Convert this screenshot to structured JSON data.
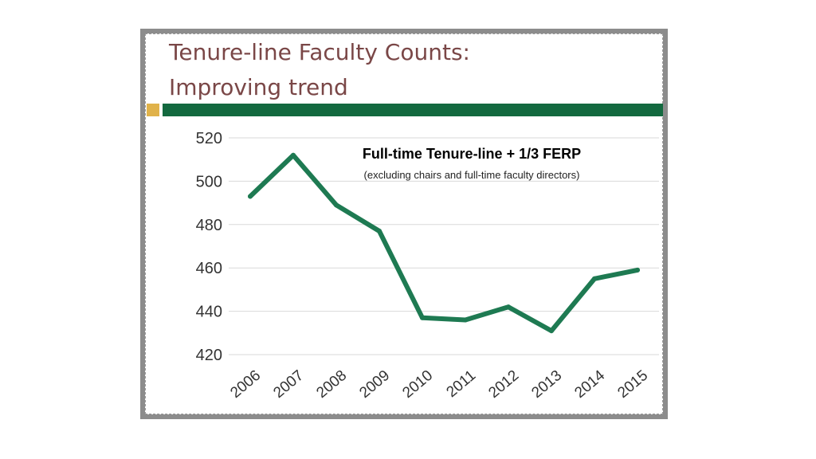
{
  "slide": {
    "title": "Tenure-line Faculty Counts:\nImproving trend"
  },
  "colors": {
    "title_text": "#7a4747",
    "header_bar": "#13693f",
    "accent_square": "#e0b24a",
    "line": "#1e7a52",
    "grid": "#d9d9d9"
  },
  "chart_data": {
    "type": "line",
    "title": "Full-time Tenure-line + 1/3 FERP",
    "subtitle": "(excluding chairs and full-time faculty directors)",
    "xlabel": "",
    "ylabel": "",
    "categories": [
      "2006",
      "2007",
      "2008",
      "2009",
      "2010",
      "2011",
      "2012",
      "2013",
      "2014",
      "2015"
    ],
    "series": [
      {
        "name": "Full-time Tenure-line + 1/3 FERP",
        "values": [
          493,
          512,
          489,
          477,
          437,
          436,
          442,
          431,
          455,
          459
        ]
      }
    ],
    "ylim": [
      420,
      520
    ],
    "yticks": [
      520,
      500,
      480,
      460,
      440,
      420
    ],
    "grid": true,
    "legend": "none"
  }
}
